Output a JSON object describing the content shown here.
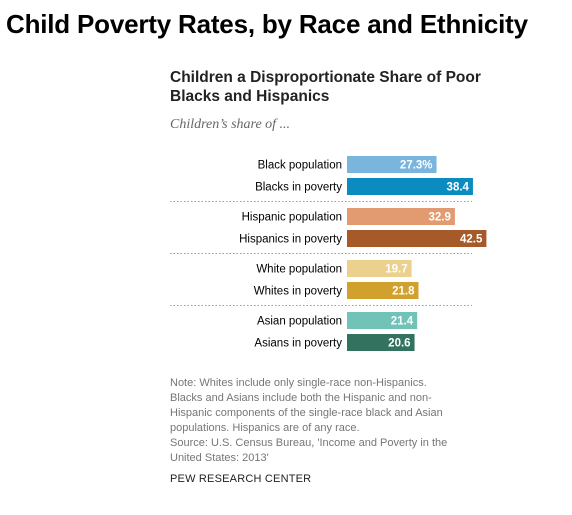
{
  "page_title": "Child Poverty Rates, by Race and Ethnicity",
  "note": "Note: Whites include only single-race non-Hispanics. Blacks and Asians include both the Hispanic and non-Hispanic components of the single-race black and Asian populations. Hispanics are of any race.",
  "source": "Source: U.S. Census Bureau, 'Income and Poverty in the United States: 2013'",
  "credit": "PEW RESEARCH CENTER",
  "chart_data": {
    "type": "bar",
    "orientation": "horizontal",
    "title": "Children a Disproportionate Share of Poor Blacks and Hispanics",
    "subtitle": "Children’s share of ...",
    "xlabel": "",
    "ylabel": "",
    "xlim": [
      0,
      45
    ],
    "grid": false,
    "legend": "none",
    "groups": [
      {
        "bars": [
          {
            "label": "Black population",
            "value": 27.3,
            "value_label": "27.3%",
            "color": "#7ab5de"
          },
          {
            "label": "Blacks in poverty",
            "value": 38.4,
            "value_label": "38.4",
            "color": "#0b8cc0"
          }
        ]
      },
      {
        "bars": [
          {
            "label": "Hispanic population",
            "value": 32.9,
            "value_label": "32.9",
            "color": "#e29b71"
          },
          {
            "label": "Hispanics in poverty",
            "value": 42.5,
            "value_label": "42.5",
            "color": "#a65a29"
          }
        ]
      },
      {
        "bars": [
          {
            "label": "White population",
            "value": 19.7,
            "value_label": "19.7",
            "color": "#ebd18d"
          },
          {
            "label": "Whites in poverty",
            "value": 21.8,
            "value_label": "21.8",
            "color": "#d0a12d"
          }
        ]
      },
      {
        "bars": [
          {
            "label": "Asian population",
            "value": 21.4,
            "value_label": "21.4",
            "color": "#71c2b7"
          },
          {
            "label": "Asians in poverty",
            "value": 20.6,
            "value_label": "20.6",
            "color": "#32725f"
          }
        ]
      }
    ]
  }
}
